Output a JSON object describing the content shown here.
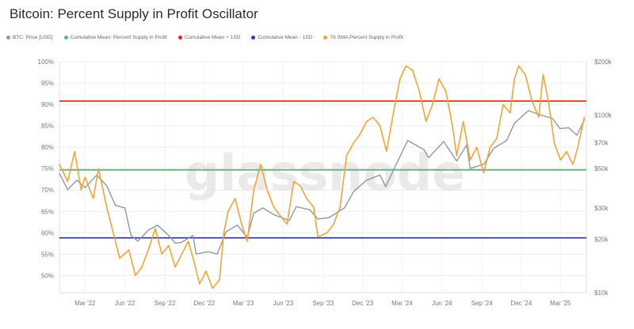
{
  "chart_data": {
    "type": "line",
    "title": "Bitcoin: Percent Supply in Profit Oscillator",
    "watermark": "glassnode",
    "x_labels": [
      "Mar '22",
      "Jun '22",
      "Sep '22",
      "Dec '22",
      "Mar '23",
      "Jun '23",
      "Sep '23",
      "Dec '23",
      "Mar '24",
      "Jun '24",
      "Sep '24",
      "Dec '24",
      "Mar '25"
    ],
    "x_range": [
      "2022-01",
      "2025-04"
    ],
    "left_axis": {
      "ticks": [
        "100%",
        "95%",
        "90%",
        "85%",
        "80%",
        "75%",
        "70%",
        "65%",
        "60%",
        "55%",
        "50%"
      ],
      "range": [
        46,
        100
      ]
    },
    "right_axis": {
      "scale": "log",
      "ticks": [
        "$200k",
        "$100k",
        "$70k",
        "$50k",
        "$30k",
        "$20k",
        "$10k"
      ],
      "range": [
        10000,
        200000
      ]
    },
    "grid": true,
    "legend_position": "top-left",
    "legend": [
      {
        "label": "BTC: Price [USD]",
        "color": "#8f9a9a"
      },
      {
        "label": "Cumulative Mean: Percent Supply in Profit",
        "color": "#59b983"
      },
      {
        "label": "Cumulative Mean + 1SD",
        "color": "#e0241f"
      },
      {
        "label": "Cumulative Mean - 1SD",
        "color": "#3a3aa5"
      },
      {
        "label": "7d SMA Percent Supply in Profit",
        "color": "#f0a43a"
      }
    ],
    "horizontal_lines": [
      {
        "series": "Cumulative Mean + 1SD",
        "value": 90.8,
        "color": "#e0241f"
      },
      {
        "series": "Cumulative Mean: Percent Supply in Profit",
        "value": 74.7,
        "color": "#59b983"
      },
      {
        "series": "Cumulative Mean - 1SD",
        "value": 58.8,
        "color": "#3a3aa5"
      }
    ],
    "series": [
      {
        "name": "7d SMA Percent Supply in Profit",
        "axis": "left",
        "color": "#f0a43a",
        "points": [
          [
            "2022-01-01",
            76
          ],
          [
            "2022-01-20",
            72
          ],
          [
            "2022-02-05",
            79
          ],
          [
            "2022-02-20",
            70
          ],
          [
            "2022-03-01",
            73
          ],
          [
            "2022-03-20",
            68
          ],
          [
            "2022-04-01",
            75
          ],
          [
            "2022-04-20",
            66
          ],
          [
            "2022-05-05",
            60
          ],
          [
            "2022-05-20",
            54
          ],
          [
            "2022-06-10",
            56
          ],
          [
            "2022-06-25",
            50
          ],
          [
            "2022-07-10",
            52
          ],
          [
            "2022-07-25",
            56
          ],
          [
            "2022-08-10",
            61
          ],
          [
            "2022-08-25",
            55
          ],
          [
            "2022-09-10",
            57
          ],
          [
            "2022-09-25",
            52
          ],
          [
            "2022-10-10",
            55
          ],
          [
            "2022-10-25",
            58
          ],
          [
            "2022-11-08",
            53
          ],
          [
            "2022-11-20",
            48
          ],
          [
            "2022-12-05",
            51
          ],
          [
            "2022-12-20",
            47
          ],
          [
            "2023-01-05",
            49
          ],
          [
            "2023-01-15",
            60
          ],
          [
            "2023-01-25",
            65
          ],
          [
            "2023-02-10",
            68
          ],
          [
            "2023-02-25",
            62
          ],
          [
            "2023-03-10",
            58
          ],
          [
            "2023-03-25",
            70
          ],
          [
            "2023-04-10",
            76
          ],
          [
            "2023-04-25",
            70
          ],
          [
            "2023-05-10",
            66
          ],
          [
            "2023-05-25",
            64
          ],
          [
            "2023-06-10",
            62
          ],
          [
            "2023-06-25",
            72
          ],
          [
            "2023-07-10",
            71
          ],
          [
            "2023-07-25",
            68
          ],
          [
            "2023-08-10",
            66
          ],
          [
            "2023-08-20",
            59
          ],
          [
            "2023-09-10",
            60
          ],
          [
            "2023-09-25",
            62
          ],
          [
            "2023-10-10",
            66
          ],
          [
            "2023-10-25",
            78
          ],
          [
            "2023-11-10",
            81
          ],
          [
            "2023-11-25",
            83
          ],
          [
            "2023-12-10",
            86
          ],
          [
            "2023-12-25",
            87
          ],
          [
            "2024-01-10",
            85
          ],
          [
            "2024-01-25",
            79
          ],
          [
            "2024-02-10",
            88
          ],
          [
            "2024-02-25",
            96
          ],
          [
            "2024-03-10",
            99
          ],
          [
            "2024-03-25",
            98
          ],
          [
            "2024-04-10",
            93
          ],
          [
            "2024-04-25",
            86
          ],
          [
            "2024-05-10",
            90
          ],
          [
            "2024-05-25",
            96
          ],
          [
            "2024-06-10",
            93
          ],
          [
            "2024-06-25",
            85
          ],
          [
            "2024-07-05",
            78
          ],
          [
            "2024-07-20",
            86
          ],
          [
            "2024-08-05",
            77
          ],
          [
            "2024-08-20",
            80
          ],
          [
            "2024-09-05",
            74
          ],
          [
            "2024-09-20",
            80
          ],
          [
            "2024-10-05",
            82
          ],
          [
            "2024-10-20",
            90
          ],
          [
            "2024-11-05",
            88
          ],
          [
            "2024-11-15",
            96
          ],
          [
            "2024-11-25",
            99
          ],
          [
            "2024-12-10",
            97
          ],
          [
            "2024-12-25",
            91
          ],
          [
            "2025-01-10",
            87
          ],
          [
            "2025-01-20",
            97
          ],
          [
            "2025-02-01",
            91
          ],
          [
            "2025-02-15",
            81
          ],
          [
            "2025-03-01",
            77
          ],
          [
            "2025-03-15",
            79
          ],
          [
            "2025-03-30",
            76
          ],
          [
            "2025-04-10",
            80
          ],
          [
            "2025-04-25",
            87
          ]
        ]
      },
      {
        "name": "BTC: Price [USD]",
        "axis": "right",
        "color": "#8f9a9a",
        "points": [
          [
            "2022-01-01",
            47000
          ],
          [
            "2022-01-20",
            38000
          ],
          [
            "2022-02-10",
            43000
          ],
          [
            "2022-03-01",
            39000
          ],
          [
            "2022-03-28",
            46000
          ],
          [
            "2022-04-20",
            40000
          ],
          [
            "2022-05-10",
            31000
          ],
          [
            "2022-06-01",
            30000
          ],
          [
            "2022-06-15",
            21000
          ],
          [
            "2022-07-01",
            19500
          ],
          [
            "2022-07-25",
            22500
          ],
          [
            "2022-08-15",
            24000
          ],
          [
            "2022-09-10",
            21000
          ],
          [
            "2022-09-25",
            19000
          ],
          [
            "2022-10-10",
            19200
          ],
          [
            "2022-11-05",
            21000
          ],
          [
            "2022-11-12",
            16500
          ],
          [
            "2022-12-10",
            17000
          ],
          [
            "2022-12-31",
            16500
          ],
          [
            "2023-01-20",
            22000
          ],
          [
            "2023-02-15",
            24000
          ],
          [
            "2023-03-10",
            20500
          ],
          [
            "2023-03-25",
            28000
          ],
          [
            "2023-04-15",
            30000
          ],
          [
            "2023-05-10",
            27500
          ],
          [
            "2023-06-15",
            25500
          ],
          [
            "2023-07-01",
            30500
          ],
          [
            "2023-08-01",
            29300
          ],
          [
            "2023-08-20",
            26000
          ],
          [
            "2023-09-15",
            26500
          ],
          [
            "2023-10-20",
            30000
          ],
          [
            "2023-11-10",
            37000
          ],
          [
            "2023-12-10",
            43000
          ],
          [
            "2024-01-10",
            46000
          ],
          [
            "2024-01-23",
            39500
          ],
          [
            "2024-02-15",
            52000
          ],
          [
            "2024-03-14",
            72000
          ],
          [
            "2024-04-20",
            64000
          ],
          [
            "2024-05-01",
            57500
          ],
          [
            "2024-06-05",
            71000
          ],
          [
            "2024-07-05",
            55000
          ],
          [
            "2024-07-28",
            68000
          ],
          [
            "2024-08-05",
            50000
          ],
          [
            "2024-09-06",
            53000
          ],
          [
            "2024-09-28",
            65000
          ],
          [
            "2024-10-28",
            72000
          ],
          [
            "2024-11-15",
            90000
          ],
          [
            "2024-12-17",
            106000
          ],
          [
            "2025-01-15",
            100000
          ],
          [
            "2025-02-10",
            96000
          ],
          [
            "2025-02-28",
            84000
          ],
          [
            "2025-03-20",
            85000
          ],
          [
            "2025-04-08",
            77000
          ],
          [
            "2025-04-25",
            94000
          ]
        ]
      }
    ]
  }
}
